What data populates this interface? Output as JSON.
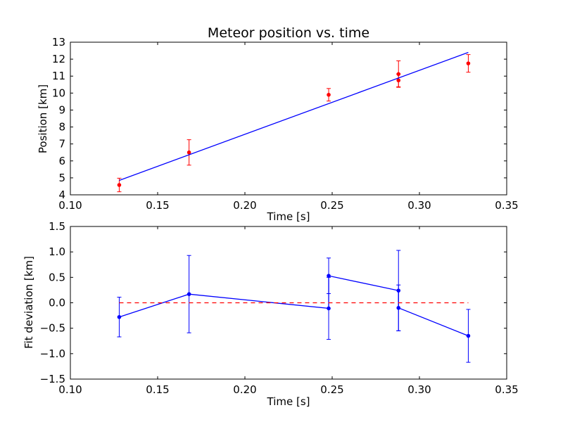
{
  "chart_data": [
    {
      "type": "line",
      "title": "Meteor position vs. time",
      "xlabel": "Time [s]",
      "ylabel": "Position [km]",
      "xlim": [
        0.1,
        0.35
      ],
      "ylim": [
        4,
        13
      ],
      "xticks": [
        "0.10",
        "0.15",
        "0.20",
        "0.25",
        "0.30",
        "0.35"
      ],
      "yticks": [
        "4",
        "5",
        "6",
        "7",
        "8",
        "9",
        "10",
        "11",
        "12",
        "13"
      ],
      "grid": false,
      "series": [
        {
          "kind": "errorbar",
          "color": "#ff0000",
          "x": [
            0.128,
            0.168,
            0.248,
            0.288,
            0.288,
            0.328
          ],
          "y": [
            4.58,
            6.5,
            9.9,
            10.75,
            11.12,
            11.75
          ],
          "yerr": [
            0.4,
            0.75,
            0.37,
            0.38,
            0.78,
            0.52
          ]
        },
        {
          "kind": "fit-line",
          "color": "#0000ff",
          "x": [
            0.128,
            0.328
          ],
          "y": [
            4.85,
            12.4
          ]
        }
      ]
    },
    {
      "type": "line",
      "title": "",
      "xlabel": "Time [s]",
      "ylabel": "Fit deviation [km]",
      "xlim": [
        0.1,
        0.35
      ],
      "ylim": [
        -1.5,
        1.5
      ],
      "xticks": [
        "0.10",
        "0.15",
        "0.20",
        "0.25",
        "0.30",
        "0.35"
      ],
      "yticks": [
        "−1.5",
        "−1.0",
        "−0.5",
        "0.0",
        "0.5",
        "1.0",
        "1.5"
      ],
      "grid": false,
      "series": [
        {
          "kind": "errorbar-line",
          "color": "#0000ff",
          "x": [
            0.128,
            0.168,
            0.248,
            0.248,
            0.288,
            0.288,
            0.328
          ],
          "y": [
            -0.28,
            0.17,
            -0.11,
            0.53,
            0.24,
            -0.1,
            -0.65
          ],
          "yerr": [
            0.39,
            0.76,
            0.61,
            0.35,
            0.79,
            0.45,
            0.52
          ]
        },
        {
          "kind": "zero-line",
          "color": "#ff0000",
          "style": "dashed",
          "x": [
            0.128,
            0.328
          ],
          "y": [
            0.0,
            0.0
          ]
        }
      ]
    }
  ]
}
